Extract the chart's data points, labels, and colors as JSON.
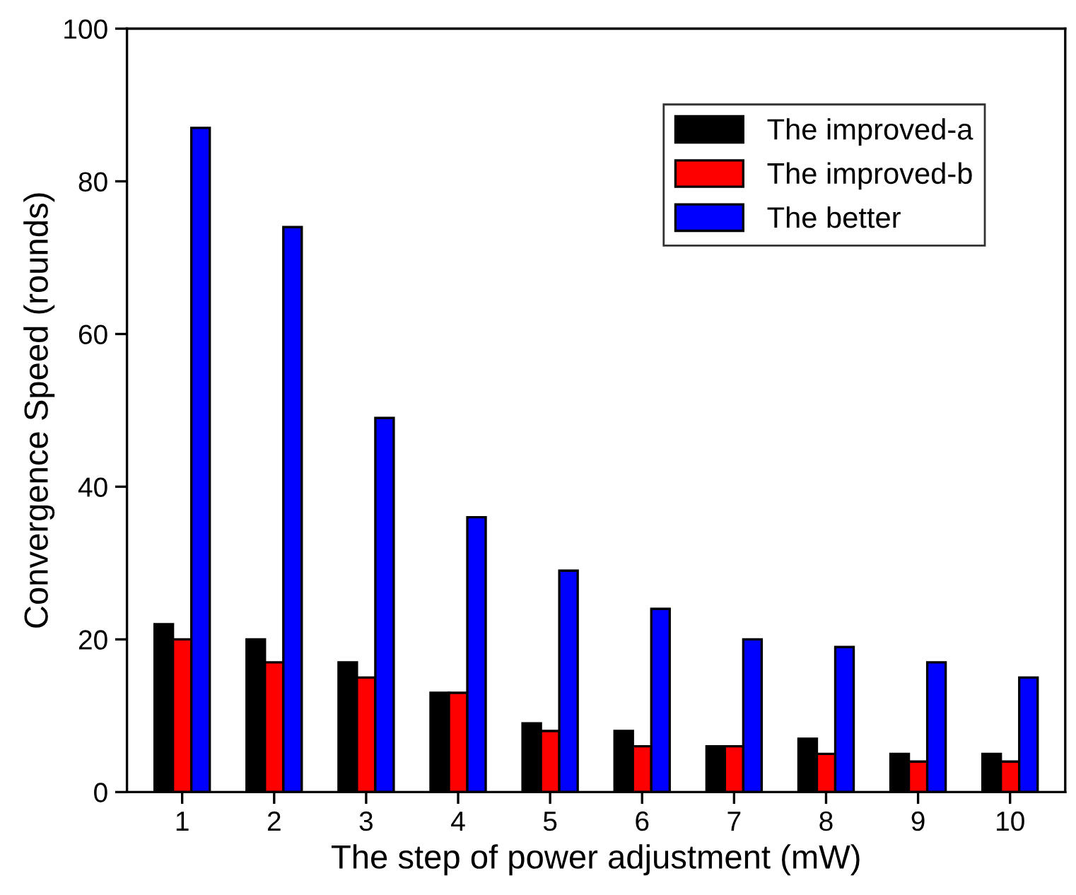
{
  "chart_data": {
    "type": "bar",
    "xlabel": "The step of power adjustment (mW)",
    "ylabel": "Convergence Speed (rounds)",
    "categories": [
      "1",
      "2",
      "3",
      "4",
      "5",
      "6",
      "7",
      "8",
      "9",
      "10"
    ],
    "series": [
      {
        "name": "The improved-a",
        "color": "#000000",
        "values": [
          22,
          20,
          17,
          13,
          9,
          8,
          6,
          7,
          5,
          5
        ]
      },
      {
        "name": "The improved-b",
        "color": "#ff0000",
        "values": [
          20,
          17,
          15,
          13,
          8,
          6,
          6,
          5,
          4,
          4
        ]
      },
      {
        "name": "The better",
        "color": "#0000ff",
        "values": [
          87,
          74,
          49,
          36,
          29,
          24,
          20,
          19,
          17,
          15
        ]
      }
    ],
    "ylim": [
      0,
      100
    ],
    "yticks": [
      0,
      20,
      40,
      60,
      80,
      100
    ],
    "grid": false,
    "legend": "top right"
  }
}
